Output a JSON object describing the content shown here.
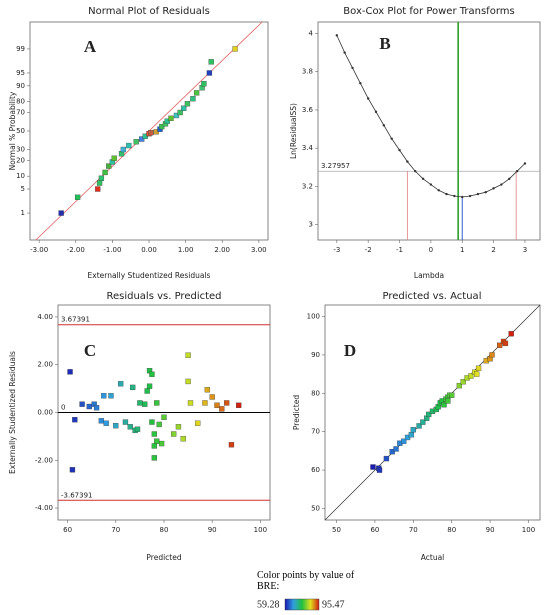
{
  "chart_data": [
    {
      "type": "probability",
      "title": "Normal Plot of Residuals",
      "xlabel": "Externally Studentized Residuals",
      "ylabel": "Normal % Probability",
      "panel_label": "A",
      "x": [
        -2.4,
        -1.95,
        -1.4,
        -1.35,
        -1.3,
        -1.2,
        -1.1,
        -1.0,
        -0.95,
        -0.75,
        -0.7,
        -0.55,
        -0.35,
        -0.2,
        -0.1,
        0.0,
        0.05,
        0.2,
        0.3,
        0.35,
        0.45,
        0.5,
        0.6,
        0.75,
        0.85,
        0.95,
        1.05,
        1.2,
        1.3,
        1.45,
        1.5,
        1.65,
        1.7,
        2.35
      ],
      "values": [
        1,
        3,
        5,
        7,
        9,
        12,
        16,
        19,
        22,
        26,
        30,
        34,
        38,
        41,
        44,
        47,
        48,
        49,
        52,
        55,
        58,
        61,
        64,
        67,
        70,
        74,
        78,
        82,
        86,
        89,
        91,
        95,
        97.5,
        99
      ],
      "colors": [
        "#1f2fb0",
        "#22c05a",
        "#e03020",
        "#33c060",
        "#2ec070",
        "#40c040",
        "#4ab040",
        "#2ec0a0",
        "#5cc030",
        "#30c070",
        "#40b0d0",
        "#30c0b0",
        "#40c060",
        "#4080e0",
        "#30c090",
        "#e05030",
        "#c06040",
        "#d0a030",
        "#2060d0",
        "#40c050",
        "#40c060",
        "#30c090",
        "#60c030",
        "#40c0c0",
        "#40c060",
        "#30c0a0",
        "#40c060",
        "#30c080",
        "#50c040",
        "#40c070",
        "#30c060",
        "#2040c0",
        "#30c060",
        "#e0d020"
      ],
      "xlim": [
        -3.25,
        3.25
      ],
      "ylim": [
        0.1,
        99.9
      ],
      "yscale": "probit",
      "xticks": [
        {
          "value": -3,
          "label": "-3.00"
        },
        {
          "value": -2,
          "label": "-2.00"
        },
        {
          "value": -1,
          "label": "-1.00"
        },
        {
          "value": 0,
          "label": "0.00"
        },
        {
          "value": 1,
          "label": "1.00"
        },
        {
          "value": 2,
          "label": "2.00"
        },
        {
          "value": 3,
          "label": "3.00"
        }
      ],
      "yticks": [
        1,
        5,
        10,
        20,
        30,
        50,
        70,
        80,
        90,
        95,
        99
      ],
      "reference_line_color": "#e06060"
    },
    {
      "type": "line",
      "title": "Box-Cox Plot for Power Transforms",
      "xlabel": "Lambda",
      "ylabel": "Ln(ResidualSS)",
      "panel_label": "B",
      "x": [
        -3,
        -2.75,
        -2.5,
        -2.25,
        -2,
        -1.75,
        -1.5,
        -1.25,
        -1,
        -0.75,
        -0.5,
        -0.25,
        0,
        0.25,
        0.5,
        0.75,
        1,
        1.25,
        1.5,
        1.75,
        2,
        2.25,
        2.5,
        2.75,
        3
      ],
      "values": [
        3.99,
        3.9,
        3.82,
        3.74,
        3.66,
        3.59,
        3.52,
        3.45,
        3.39,
        3.33,
        3.28,
        3.24,
        3.21,
        3.18,
        3.16,
        3.15,
        3.145,
        3.15,
        3.16,
        3.17,
        3.19,
        3.21,
        3.24,
        3.28,
        3.32
      ],
      "color": "#333333",
      "xlim": [
        -3.6,
        3.48
      ],
      "ylim": [
        2.92,
        4.06
      ],
      "xticks": [
        -3,
        -2,
        -1,
        0,
        1,
        2,
        3
      ],
      "yticks": [
        3,
        3.2,
        3.4,
        3.6,
        3.8,
        4
      ],
      "threshold": 3.27957,
      "best_lambda": 0.87,
      "current_lambda": 1,
      "ci": [
        -0.75,
        2.72
      ]
    },
    {
      "type": "scatter",
      "title": "Residuals vs. Predicted",
      "xlabel": "Predicted",
      "ylabel": "Externally Studentized Residuals",
      "panel_label": "C",
      "x": [
        60.5,
        61,
        61.5,
        63,
        64.5,
        65.5,
        66,
        67,
        67.5,
        68,
        69,
        70,
        71,
        72,
        73,
        73.5,
        74,
        74.5,
        75,
        76,
        76.5,
        77,
        77,
        77.5,
        77.5,
        78,
        78,
        78,
        78.5,
        78.5,
        79,
        79.5,
        80,
        82,
        83,
        84,
        85,
        85,
        85.5,
        87,
        88.5,
        89,
        90,
        91,
        92,
        93,
        94,
        95.5
      ],
      "values": [
        1.7,
        -2.4,
        -0.3,
        0.35,
        0.25,
        0.35,
        0.2,
        -0.35,
        0.7,
        -0.45,
        0.7,
        -0.55,
        1.2,
        -0.4,
        -0.6,
        1.05,
        -0.75,
        -0.7,
        0.4,
        0.35,
        0.9,
        1.75,
        1.1,
        1.6,
        -0.4,
        -0.9,
        -1.4,
        -1.9,
        -1.2,
        0.4,
        -0.5,
        -1.3,
        -0.2,
        -0.9,
        -0.6,
        -1.1,
        2.4,
        1.3,
        0.4,
        -0.45,
        0.4,
        0.95,
        0.65,
        0.3,
        0.15,
        0.4,
        -1.35,
        0.3
      ],
      "color_by": "x",
      "xlim": [
        58,
        102
      ],
      "ylim": [
        -4.5,
        4.5
      ],
      "xticks": [
        60,
        70,
        80,
        90,
        100
      ],
      "yticks": [
        {
          "value": -4,
          "label": "-4.00"
        },
        {
          "value": -2,
          "label": "-2.00"
        },
        {
          "value": 0,
          "label": "0.00"
        },
        {
          "value": 2,
          "label": "2.00"
        },
        {
          "value": 4,
          "label": "4.00"
        }
      ],
      "reference_lines": [
        {
          "value": 3.67391,
          "color": "#d03030"
        },
        {
          "value": 0,
          "color": "#000000"
        },
        {
          "value": -3.67391,
          "color": "#d03030"
        }
      ]
    },
    {
      "type": "scatter",
      "title": "Predicted vs. Actual",
      "xlabel": "Actual",
      "ylabel": "Predicted",
      "panel_label": "D",
      "x": [
        59.5,
        61,
        61.2,
        63,
        64.5,
        65.5,
        66.5,
        67.5,
        68.5,
        69.5,
        70,
        71.5,
        72.5,
        73.5,
        74,
        75,
        76,
        76.5,
        77,
        77.5,
        78,
        78.5,
        79,
        79.5,
        79,
        80,
        82,
        83,
        84,
        85,
        86,
        86.5,
        87,
        89,
        90,
        90.5,
        92.5,
        93.5,
        94,
        95.5
      ],
      "values": [
        60.8,
        60.5,
        60,
        63,
        64.8,
        65.5,
        67,
        67.5,
        68.5,
        69.2,
        70.5,
        71.5,
        72.5,
        73.5,
        74.5,
        75.3,
        75.8,
        76.5,
        77.5,
        78,
        77,
        78.5,
        79,
        79.5,
        78,
        79.5,
        82,
        83,
        84,
        84.5,
        85.5,
        85,
        86.5,
        88.5,
        89,
        90,
        92.5,
        93.5,
        93,
        95.5
      ],
      "color_by": "x",
      "xlim": [
        47,
        103
      ],
      "ylim": [
        47,
        103
      ],
      "xticks": [
        50,
        60,
        70,
        80,
        90,
        100
      ],
      "yticks": [
        50,
        60,
        70,
        80,
        90,
        100
      ],
      "diagonal": true
    }
  ],
  "colorbar": {
    "title": "Color points by value of BRE:",
    "min": 59.28,
    "max": 95.47,
    "colors": [
      "#1a1ab0",
      "#30a0e0",
      "#20c040",
      "#e0e020",
      "#d02010"
    ],
    "min_color": "#2030c0",
    "max_color": "#d02020"
  }
}
